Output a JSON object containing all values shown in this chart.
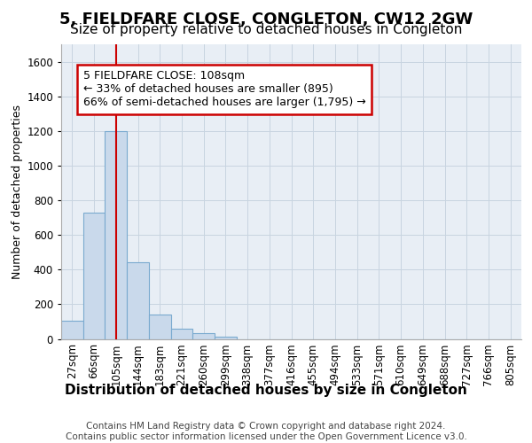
{
  "title_line1": "5, FIELDFARE CLOSE, CONGLETON, CW12 2GW",
  "title_line2": "Size of property relative to detached houses in Congleton",
  "xlabel": "Distribution of detached houses by size in Congleton",
  "ylabel": "Number of detached properties",
  "footer": "Contains HM Land Registry data © Crown copyright and database right 2024.\nContains public sector information licensed under the Open Government Licence v3.0.",
  "bin_labels": [
    "27sqm",
    "66sqm",
    "105sqm",
    "144sqm",
    "183sqm",
    "221sqm",
    "260sqm",
    "299sqm",
    "338sqm",
    "377sqm",
    "416sqm",
    "455sqm",
    "494sqm",
    "533sqm",
    "571sqm",
    "610sqm",
    "649sqm",
    "688sqm",
    "727sqm",
    "766sqm",
    "805sqm"
  ],
  "bar_values": [
    105,
    730,
    1200,
    440,
    142,
    58,
    35,
    15,
    0,
    0,
    0,
    0,
    0,
    0,
    0,
    0,
    0,
    0,
    0,
    0,
    0
  ],
  "bar_color": "#c9d9eb",
  "bar_edge_color": "#7aaacf",
  "property_line_x": 2,
  "annotation_text": "5 FIELDFARE CLOSE: 108sqm\n← 33% of detached houses are smaller (895)\n66% of semi-detached houses are larger (1,795) →",
  "annotation_box_color": "#ffffff",
  "annotation_box_edge_color": "#cc0000",
  "vline_color": "#cc0000",
  "ylim": [
    0,
    1700
  ],
  "yticks": [
    0,
    200,
    400,
    600,
    800,
    1000,
    1200,
    1400,
    1600
  ],
  "grid_color": "#c8d4e0",
  "background_color": "#e8eef5",
  "title1_fontsize": 13,
  "title2_fontsize": 11,
  "xlabel_fontsize": 11,
  "ylabel_fontsize": 9,
  "tick_fontsize": 8.5,
  "footer_fontsize": 7.5
}
